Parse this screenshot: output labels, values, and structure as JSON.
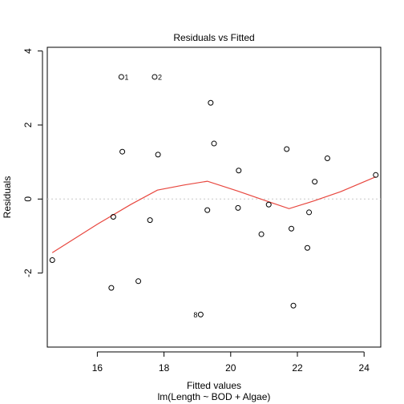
{
  "chart_data": {
    "type": "scatter",
    "title": "Residuals vs Fitted",
    "xlabel": "Fitted values",
    "subtitle": "lm(Length ~ BOD + Algae)",
    "ylabel": "Residuals",
    "xlim": [
      14.5,
      24.5
    ],
    "ylim": [
      -4,
      4.1
    ],
    "xticks": [
      "16",
      "18",
      "20",
      "22",
      "24"
    ],
    "yticks": [
      "-2",
      "0",
      "2",
      "4"
    ],
    "reference_line_y": 0,
    "grid": false,
    "points": [
      {
        "x": 14.65,
        "y": -1.65
      },
      {
        "x": 16.42,
        "y": -2.4
      },
      {
        "x": 16.48,
        "y": -0.48
      },
      {
        "x": 16.72,
        "y": 3.3,
        "label": "1"
      },
      {
        "x": 16.75,
        "y": 1.28
      },
      {
        "x": 17.23,
        "y": -2.22
      },
      {
        "x": 17.58,
        "y": -0.57
      },
      {
        "x": 17.72,
        "y": 3.3,
        "label": "2"
      },
      {
        "x": 17.82,
        "y": 1.2
      },
      {
        "x": 19.1,
        "y": -3.12,
        "label": "8"
      },
      {
        "x": 19.3,
        "y": -0.3
      },
      {
        "x": 19.4,
        "y": 2.6
      },
      {
        "x": 19.5,
        "y": 1.5
      },
      {
        "x": 20.22,
        "y": -0.24
      },
      {
        "x": 20.24,
        "y": 0.77
      },
      {
        "x": 20.92,
        "y": -0.95
      },
      {
        "x": 21.14,
        "y": -0.15
      },
      {
        "x": 21.68,
        "y": 1.35
      },
      {
        "x": 21.82,
        "y": -0.8
      },
      {
        "x": 21.88,
        "y": -2.88
      },
      {
        "x": 22.3,
        "y": -1.32
      },
      {
        "x": 22.35,
        "y": -0.36
      },
      {
        "x": 22.52,
        "y": 0.47
      },
      {
        "x": 22.9,
        "y": 1.1
      },
      {
        "x": 24.35,
        "y": 0.65
      }
    ],
    "smoother": {
      "color": "#e8473f",
      "x": [
        14.65,
        16.0,
        17.0,
        17.8,
        18.6,
        19.3,
        20.2,
        21.0,
        21.75,
        22.5,
        23.3,
        24.35
      ],
      "y": [
        -1.45,
        -0.68,
        -0.15,
        0.24,
        0.38,
        0.48,
        0.22,
        -0.03,
        -0.26,
        -0.05,
        0.2,
        0.6
      ]
    }
  }
}
